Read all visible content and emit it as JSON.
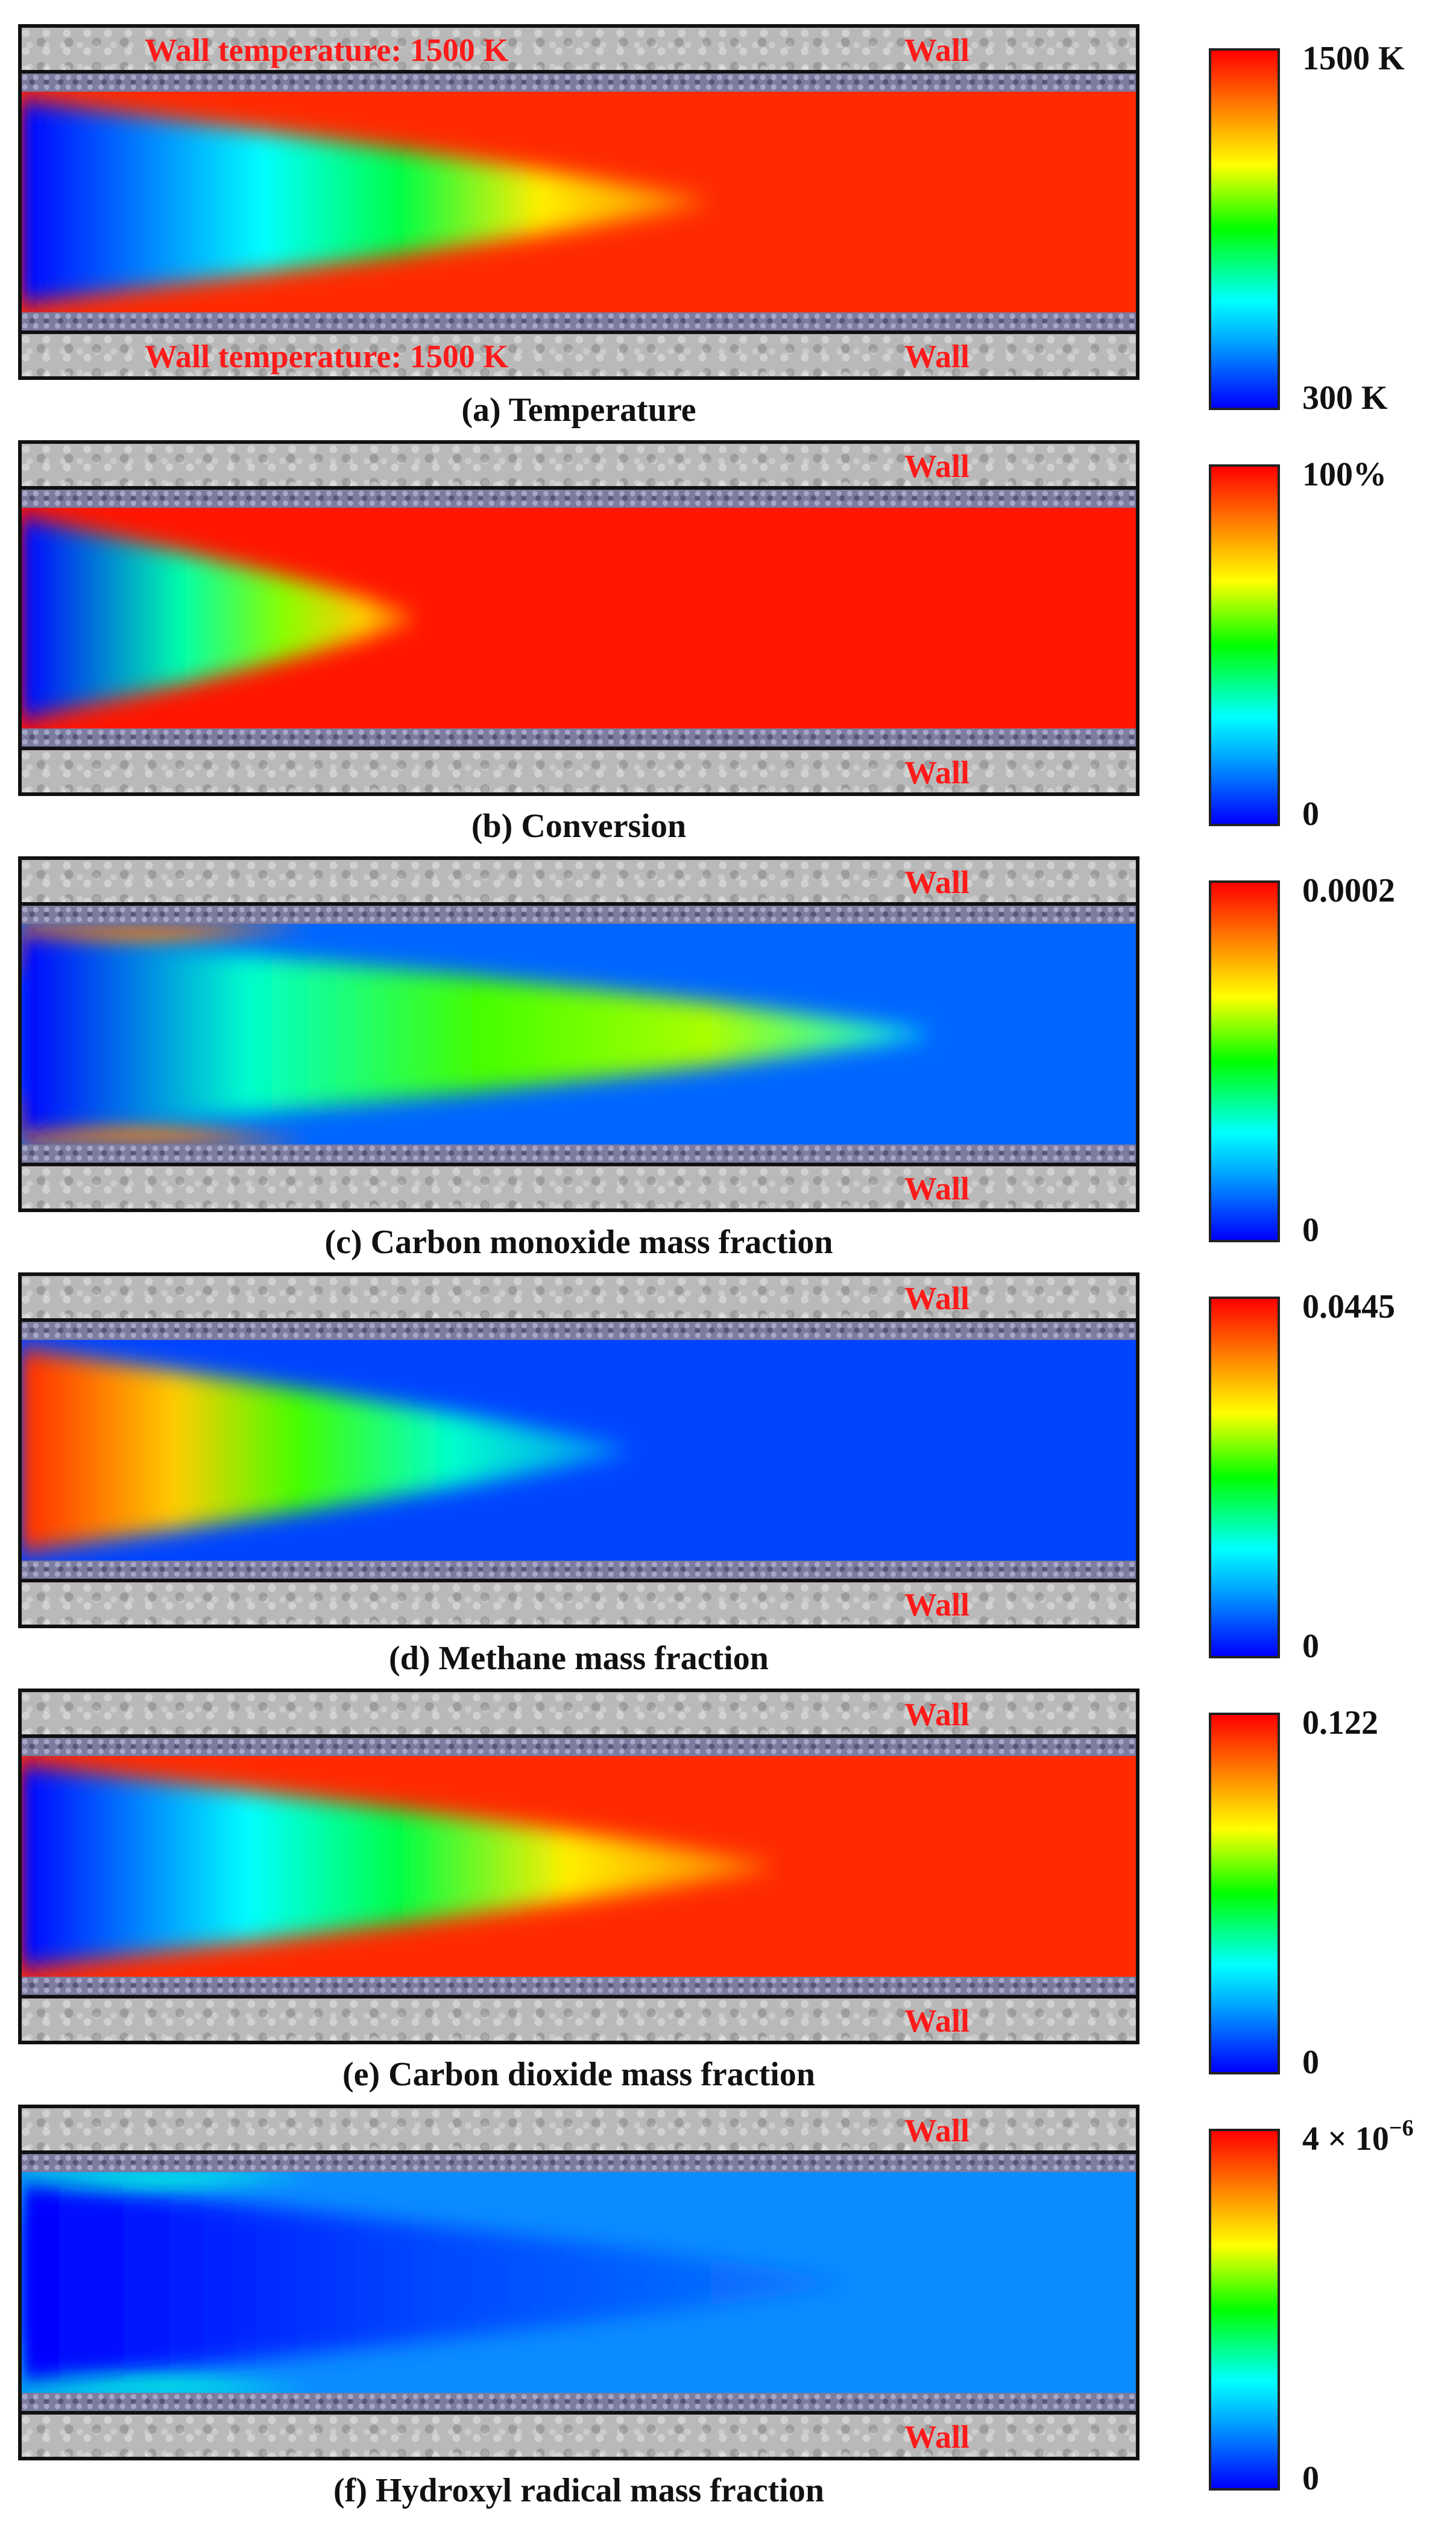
{
  "panels": [
    {
      "caption": "(a) Temperature",
      "colorbar": {
        "max": "1500 K",
        "min": "300 K"
      },
      "wall_labels": {
        "top_left": "Wall temperature: 1500 K",
        "top_right": "Wall",
        "bottom_left": "Wall temperature: 1500 K",
        "bottom_right": "Wall"
      },
      "field": {
        "base": "#ff2a00",
        "cone": [
          [
            0,
            "#0000ff"
          ],
          [
            0.35,
            "#00ffff"
          ],
          [
            0.55,
            "#00ff44"
          ],
          [
            0.75,
            "#ffee00"
          ],
          [
            1,
            "#ff7a00"
          ]
        ],
        "tip": 0.62
      }
    },
    {
      "caption": "(b) Conversion",
      "colorbar": {
        "max": "100%",
        "min": "0"
      },
      "wall_labels": {
        "top_left": "",
        "top_right": "Wall",
        "bottom_left": "",
        "bottom_right": "Wall"
      },
      "field": {
        "base": "#ff1500",
        "cone": [
          [
            0,
            "#0000ff"
          ],
          [
            0.4,
            "#00ffaa"
          ],
          [
            0.65,
            "#88ff00"
          ],
          [
            0.85,
            "#ffcc00"
          ],
          [
            1,
            "#ff5500"
          ]
        ],
        "tip": 0.36
      }
    },
    {
      "caption": "(c) Carbon monoxide mass fraction",
      "colorbar": {
        "max": "0.0002",
        "min": "0"
      },
      "wall_labels": {
        "top_left": "",
        "top_right": "Wall",
        "bottom_left": "",
        "bottom_right": "Wall"
      },
      "field": {
        "base": "#0066ff",
        "cone": [
          [
            0,
            "#0000ff"
          ],
          [
            0.25,
            "#00ffcc"
          ],
          [
            0.5,
            "#44ff00"
          ],
          [
            0.75,
            "#aaff00"
          ],
          [
            1,
            "#00ffff"
          ]
        ],
        "tip": 0.82,
        "edge": "#ff7a00"
      }
    },
    {
      "caption": "(d) Methane mass fraction",
      "colorbar": {
        "max": "0.0445",
        "min": "0"
      },
      "wall_labels": {
        "top_left": "",
        "top_right": "Wall",
        "bottom_left": "",
        "bottom_right": "Wall"
      },
      "field": {
        "base": "#0044ff",
        "cone": [
          [
            0,
            "#ff2a00"
          ],
          [
            0.25,
            "#ffcc00"
          ],
          [
            0.45,
            "#44ff00"
          ],
          [
            0.7,
            "#00ffcc"
          ],
          [
            1,
            "#0088ff"
          ]
        ],
        "tip": 0.55
      }
    },
    {
      "caption": "(e) Carbon dioxide mass fraction",
      "colorbar": {
        "max": "0.122",
        "min": "0"
      },
      "wall_labels": {
        "top_left": "",
        "top_right": "Wall",
        "bottom_left": "",
        "bottom_right": "Wall"
      },
      "field": {
        "base": "#ff2a00",
        "cone": [
          [
            0,
            "#0000ff"
          ],
          [
            0.3,
            "#00ffff"
          ],
          [
            0.5,
            "#00ff44"
          ],
          [
            0.72,
            "#ffee00"
          ],
          [
            1,
            "#ff7a00"
          ]
        ],
        "tip": 0.68
      }
    },
    {
      "caption": "(f) Hydroxyl radical mass fraction",
      "colorbar": {
        "max": "4 × 10",
        "max_exp": "−6",
        "min": "0"
      },
      "wall_labels": {
        "top_left": "",
        "top_right": "Wall",
        "bottom_left": "",
        "bottom_right": "Wall"
      },
      "field": {
        "base": "#0a8cff",
        "cone": [
          [
            0,
            "#0000ff"
          ],
          [
            0.5,
            "#0048ff"
          ],
          [
            1,
            "#0a7cff"
          ]
        ],
        "tip": 0.75,
        "edge": "#00ffdd"
      }
    }
  ]
}
